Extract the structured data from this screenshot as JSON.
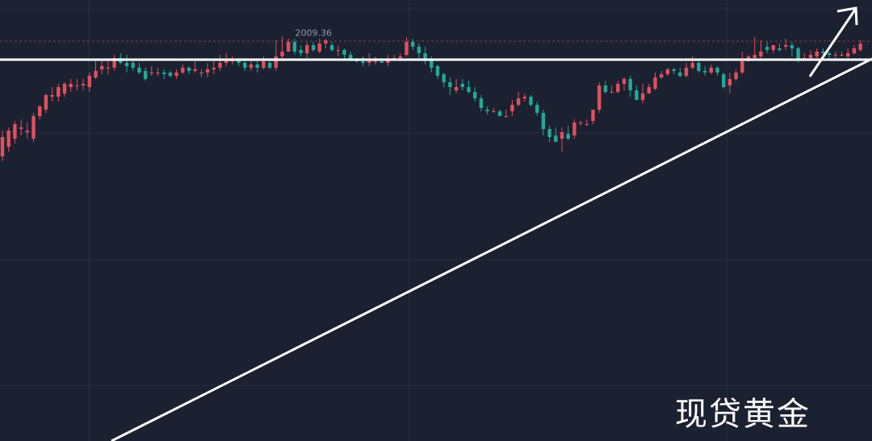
{
  "watermark": "现贷黄金",
  "colors": {
    "background": "#1b2130",
    "grid": "#263042",
    "up": "#e0505e",
    "down": "#22a89a",
    "annotation": "#ffffff",
    "ref_line": "#8a3a44"
  },
  "chart_data": {
    "type": "candlestick",
    "title": "",
    "high_label": "2009.36",
    "ylim": [
      1872,
      2018
    ],
    "grid": true,
    "candles": [
      [
        1935,
        1947,
        1951,
        1932
      ],
      [
        1941,
        1951,
        1953,
        1938
      ],
      [
        1946,
        1955,
        1957,
        1943
      ],
      [
        1952,
        1953,
        1958,
        1948
      ],
      [
        1950,
        1951,
        1956,
        1946
      ],
      [
        1946,
        1960,
        1962,
        1944
      ],
      [
        1960,
        1966,
        1967,
        1958
      ],
      [
        1964,
        1973,
        1974,
        1962
      ],
      [
        1972,
        1973,
        1978,
        1969
      ],
      [
        1972,
        1978,
        1980,
        1969
      ],
      [
        1974,
        1980,
        1981,
        1972
      ],
      [
        1978,
        1980,
        1983,
        1975
      ],
      [
        1979,
        1979,
        1983,
        1976
      ],
      [
        1979,
        1980,
        1983,
        1976
      ],
      [
        1978,
        1985,
        1987,
        1975
      ],
      [
        1984,
        1988,
        1994,
        1983
      ],
      [
        1989,
        1991,
        1995,
        1986
      ],
      [
        1990,
        1990,
        1994,
        1986
      ],
      [
        1990,
        1996,
        1998,
        1988
      ],
      [
        1996,
        1993,
        1999,
        1992
      ],
      [
        1993,
        1991,
        1998,
        1987
      ],
      [
        1993,
        1990,
        1995,
        1988
      ],
      [
        1990,
        1987,
        1993,
        1986
      ],
      [
        1988,
        1983,
        1990,
        1982
      ],
      [
        1987,
        1987,
        1991,
        1985
      ],
      [
        1987,
        1987,
        1990,
        1985
      ],
      [
        1987,
        1986,
        1989,
        1983
      ],
      [
        1987,
        1985,
        1988,
        1984
      ],
      [
        1985,
        1987,
        1989,
        1983
      ],
      [
        1987,
        1990,
        1992,
        1986
      ],
      [
        1990,
        1988,
        1991,
        1986
      ],
      [
        1988,
        1989,
        1994,
        1987
      ],
      [
        1987,
        1987,
        1989,
        1984
      ],
      [
        1987,
        1989,
        1993,
        1984
      ],
      [
        1989,
        1990,
        1995,
        1986
      ],
      [
        1990,
        1993,
        1998,
        1988
      ],
      [
        1993,
        1995,
        1999,
        1991
      ],
      [
        1994,
        1995,
        1997,
        1992
      ],
      [
        1995,
        1993,
        1996,
        1991
      ],
      [
        1993,
        1990,
        1996,
        1988
      ],
      [
        1990,
        1992,
        1995,
        1988
      ],
      [
        1992,
        1990,
        1996,
        1987
      ],
      [
        1990,
        1994,
        1997,
        1989
      ],
      [
        1993,
        1990,
        1996,
        1989
      ],
      [
        1990,
        1997,
        2007,
        1988
      ],
      [
        1997,
        2000,
        2009.36,
        1994
      ],
      [
        2000,
        2006,
        2008,
        2003
      ],
      [
        2006,
        2000,
        2008,
        1998
      ],
      [
        2001,
        1999,
        2004,
        1997
      ],
      [
        1999,
        2004,
        2006,
        1996
      ],
      [
        2004,
        2001,
        2006,
        2000
      ],
      [
        2000,
        2005,
        2008,
        1999
      ],
      [
        2005,
        2007,
        2008,
        2002
      ],
      [
        2004,
        2001,
        2006,
        2000
      ],
      [
        2001,
        2001,
        2004,
        1997
      ],
      [
        2001,
        1998,
        2002,
        1995
      ],
      [
        1998,
        1995,
        2000,
        1994
      ],
      [
        1995,
        1994,
        1996,
        1993
      ],
      [
        1994,
        1993,
        1997,
        1991
      ],
      [
        1993,
        1995,
        1999,
        1991
      ],
      [
        1994,
        1994,
        1997,
        1992
      ],
      [
        1994,
        1993,
        1996,
        1993
      ],
      [
        1993,
        1995,
        1998,
        1991
      ],
      [
        1995,
        1996,
        1998,
        1995
      ],
      [
        1996,
        1997,
        1999,
        1994
      ],
      [
        1998,
        2006,
        2009,
        1997
      ],
      [
        2006,
        2003,
        2008,
        2001
      ],
      [
        2003,
        1999,
        2005,
        1996
      ],
      [
        1999,
        1995,
        2003,
        1992
      ],
      [
        1995,
        1990,
        1997,
        1987
      ],
      [
        1991,
        1985,
        1992,
        1983
      ],
      [
        1986,
        1981,
        1987,
        1978
      ],
      [
        1981,
        1978,
        1984,
        1973
      ],
      [
        1976,
        1978,
        1983,
        1974
      ],
      [
        1980,
        1978,
        1983,
        1976
      ],
      [
        1978,
        1975,
        1982,
        1974
      ],
      [
        1975,
        1971,
        1978,
        1969
      ],
      [
        1971,
        1965,
        1973,
        1963
      ],
      [
        1964,
        1963,
        1966,
        1961
      ],
      [
        1963,
        1963,
        1965,
        1962
      ],
      [
        1963,
        1960,
        1964,
        1960
      ],
      [
        1960,
        1960,
        1964,
        1959
      ],
      [
        1963,
        1967,
        1970,
        1960
      ],
      [
        1967,
        1971,
        1975,
        1966
      ],
      [
        1971,
        1972,
        1974,
        1969
      ],
      [
        1972,
        1967,
        1973,
        1966
      ],
      [
        1967,
        1962,
        1969,
        1960
      ],
      [
        1962,
        1952,
        1964,
        1948
      ],
      [
        1952,
        1947,
        1954,
        1944
      ],
      [
        1948,
        1944,
        1953,
        1944
      ],
      [
        1946,
        1950,
        1953,
        1938
      ],
      [
        1949,
        1946,
        1954,
        1945
      ],
      [
        1948,
        1956,
        1958,
        1946
      ],
      [
        1956,
        1956,
        1957,
        1954
      ],
      [
        1955,
        1955,
        1958,
        1954
      ],
      [
        1957,
        1964,
        1964,
        1955
      ],
      [
        1964,
        1979,
        1981,
        1962
      ],
      [
        1979,
        1975,
        1982,
        1974
      ],
      [
        1975,
        1975,
        1979,
        1974
      ],
      [
        1975,
        1980,
        1982,
        1974
      ],
      [
        1980,
        1983,
        1984,
        1976
      ],
      [
        1983,
        1976,
        1985,
        1972
      ],
      [
        1976,
        1970,
        1979,
        1970
      ],
      [
        1970,
        1974,
        1980,
        1968
      ],
      [
        1974,
        1978,
        1980,
        1975
      ],
      [
        1977,
        1984,
        1987,
        1976
      ],
      [
        1984,
        1986,
        1988,
        1983
      ],
      [
        1986,
        1989,
        1990,
        1985
      ],
      [
        1989,
        1988,
        1990,
        1986
      ],
      [
        1987,
        1985,
        1990,
        1984
      ],
      [
        1985,
        1990,
        1993,
        1984
      ],
      [
        1990,
        1993,
        1997,
        1989
      ],
      [
        1993,
        1988,
        1994,
        1987
      ],
      [
        1988,
        1987,
        1991,
        1985
      ],
      [
        1987,
        1990,
        1992,
        1986
      ],
      [
        1990,
        1987,
        1991,
        1985
      ],
      [
        1986,
        1978,
        1987,
        1977
      ],
      [
        1979,
        1983,
        1987,
        1974
      ],
      [
        1983,
        1987,
        1989,
        1982
      ],
      [
        1987,
        1994,
        2000,
        1986
      ],
      [
        1994,
        1997,
        1998,
        1995
      ],
      [
        1996,
        1998,
        2009,
        1996
      ],
      [
        1997,
        2000,
        2007,
        1996
      ],
      [
        2003,
        2001,
        2006,
        1999
      ],
      [
        2001,
        2004,
        2004,
        1999
      ],
      [
        2002,
        2001,
        2005,
        2000
      ],
      [
        2003,
        2004,
        2008,
        2001
      ],
      [
        2004,
        2002,
        2006,
        1997
      ],
      [
        2002,
        1995,
        2003,
        1993
      ],
      [
        1995,
        1996,
        1999,
        1994
      ],
      [
        1996,
        1998,
        2001,
        1995
      ],
      [
        1997,
        2000,
        2002,
        1996
      ],
      [
        2000,
        1999,
        2002,
        1997
      ],
      [
        1999,
        1998,
        2000,
        1996
      ],
      [
        1998,
        1998,
        2000,
        1996
      ],
      [
        1998,
        1998,
        2000,
        1997
      ],
      [
        1997,
        1999,
        2002,
        1996
      ],
      [
        1999,
        2002,
        2004,
        1998
      ],
      [
        2001,
        2005,
        2007,
        2000
      ]
    ]
  }
}
